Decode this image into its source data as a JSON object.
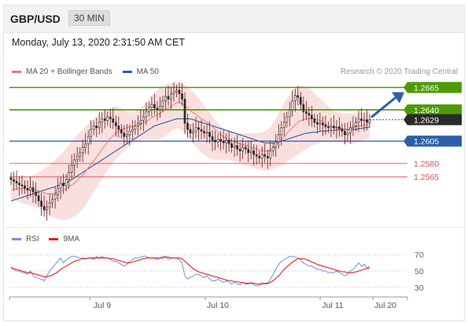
{
  "header": {
    "symbol": "GBP/USD",
    "timeframe": "30 MIN"
  },
  "timestamp": "Monday, July 13, 2020 2:31:50 AM CET",
  "copyright": "Research © 2020 Trading Central",
  "colors": {
    "resistance": "#4e9a06",
    "pivot": "#2d5ea8",
    "support": "#e05050",
    "ma50": "#2d5ea8",
    "ma20": "#e87979",
    "band": "#f9d7d7",
    "up": "#2a2a2a",
    "current": "#2a2a2a",
    "rsi": "#6e8fe0",
    "rsi_ma": "#e02020"
  },
  "chart_data": [
    {
      "type": "candlestick",
      "legend": [
        {
          "name": "MA 20 + Bollinger Bands",
          "color": "#e87979"
        },
        {
          "name": "MA 50",
          "color": "#2d5ea8"
        }
      ],
      "ylim": [
        1.2515,
        1.2675
      ],
      "levels": [
        {
          "value": 1.2665,
          "label": "1.2665",
          "kind": "resistance"
        },
        {
          "value": 1.264,
          "label": "1.2640",
          "kind": "resistance"
        },
        {
          "value": 1.2629,
          "label": "1.2629",
          "kind": "current"
        },
        {
          "value": 1.2605,
          "label": "1.2605",
          "kind": "pivot"
        },
        {
          "value": 1.258,
          "label": "1.2580",
          "kind": "support"
        },
        {
          "value": 1.2565,
          "label": "1.2565",
          "kind": "support"
        }
      ],
      "x_ticks": [
        "Jul 9",
        "Jul 10",
        "Jul 11",
        "Jul 20"
      ],
      "close": [
        1.2562,
        1.256,
        1.2558,
        1.2556,
        1.2555,
        1.2552,
        1.255,
        1.2553,
        1.2548,
        1.2544,
        1.2538,
        1.2532,
        1.2528,
        1.2531,
        1.2536,
        1.254,
        1.2545,
        1.2552,
        1.2558,
        1.2555,
        1.2562,
        1.257,
        1.2578,
        1.2584,
        1.2588,
        1.2592,
        1.2598,
        1.2602,
        1.261,
        1.2618,
        1.2622,
        1.262,
        1.2626,
        1.263,
        1.2628,
        1.2632,
        1.263,
        1.2626,
        1.2622,
        1.2618,
        1.2614,
        1.261,
        1.2612,
        1.2616,
        1.2618,
        1.2622,
        1.2625,
        1.2628,
        1.2632,
        1.2638,
        1.2643,
        1.2646,
        1.2642,
        1.264,
        1.2644,
        1.265,
        1.2655,
        1.2652,
        1.2658,
        1.266,
        1.2662,
        1.2658,
        1.2652,
        1.2625,
        1.2618,
        1.2614,
        1.2616,
        1.262,
        1.2618,
        1.2616,
        1.2614,
        1.2615,
        1.261,
        1.2606,
        1.2604,
        1.2607,
        1.2605,
        1.2603,
        1.2606,
        1.2602,
        1.2598,
        1.26,
        1.2596,
        1.2594,
        1.2598,
        1.2596,
        1.2592,
        1.2594,
        1.259,
        1.2588,
        1.2586,
        1.259,
        1.2588,
        1.2586,
        1.2594,
        1.2598,
        1.2604,
        1.2612,
        1.262,
        1.2626,
        1.2632,
        1.264,
        1.265,
        1.2656,
        1.2654,
        1.2646,
        1.2638,
        1.2636,
        1.2634,
        1.263,
        1.2626,
        1.2624,
        1.2625,
        1.2623,
        1.2621,
        1.262,
        1.2622,
        1.262,
        1.2621,
        1.2619,
        1.2616,
        1.2612,
        1.2614,
        1.262,
        1.2622,
        1.2626,
        1.263,
        1.2628,
        1.2629,
        1.2626,
        1.2629
      ],
      "ma20": [
        1.255,
        1.2551,
        1.2551,
        1.2552,
        1.2552,
        1.2552,
        1.2552,
        1.2552,
        1.2551,
        1.255,
        1.2549,
        1.2548,
        1.2547,
        1.2546,
        1.2546,
        1.2546,
        1.2547,
        1.2548,
        1.2549,
        1.255,
        1.2552,
        1.2554,
        1.2556,
        1.2558,
        1.2561,
        1.2564,
        1.2567,
        1.2571,
        1.2575,
        1.2579,
        1.2583,
        1.2587,
        1.2591,
        1.2596,
        1.26,
        1.2604,
        1.2608,
        1.2611,
        1.2614,
        1.2616,
        1.2618,
        1.2619,
        1.262,
        1.2621,
        1.2621,
        1.2622,
        1.2623,
        1.2624,
        1.2625,
        1.2627,
        1.2629,
        1.2631,
        1.2633,
        1.2634,
        1.2636,
        1.2638,
        1.264,
        1.2642,
        1.2644,
        1.2646,
        1.2648,
        1.2648,
        1.2647,
        1.2645,
        1.2642,
        1.2639,
        1.2637,
        1.2635,
        1.2632,
        1.263,
        1.2628,
        1.2626,
        1.2624,
        1.2621,
        1.2618,
        1.2615,
        1.2612,
        1.261,
        1.2608,
        1.2607,
        1.2605,
        1.2604,
        1.2603,
        1.2602,
        1.2601,
        1.26,
        1.2599,
        1.2598,
        1.2597,
        1.2596,
        1.2595,
        1.2594,
        1.2594,
        1.2594,
        1.2595,
        1.2597,
        1.26,
        1.2603,
        1.2607,
        1.261,
        1.2614,
        1.2617,
        1.262,
        1.2623,
        1.2626,
        1.2628,
        1.2629,
        1.263,
        1.263,
        1.263,
        1.263,
        1.2629,
        1.2628,
        1.2626,
        1.2624,
        1.2622,
        1.2621,
        1.262,
        1.2619,
        1.2619,
        1.2618,
        1.2618,
        1.2618,
        1.2619,
        1.262,
        1.2621,
        1.2622,
        1.2622,
        1.2623,
        1.2624,
        1.2625
      ],
      "band_upper": [
        1.2562,
        1.2563,
        1.2564,
        1.2565,
        1.2565,
        1.2565,
        1.2565,
        1.2566,
        1.2567,
        1.2568,
        1.257,
        1.2572,
        1.2574,
        1.2576,
        1.2578,
        1.2581,
        1.2584,
        1.2587,
        1.259,
        1.2593,
        1.2597,
        1.2601,
        1.2605,
        1.2608,
        1.2612,
        1.2615,
        1.2618,
        1.2621,
        1.2624,
        1.2627,
        1.263,
        1.2632,
        1.2635,
        1.2637,
        1.2639,
        1.2641,
        1.2642,
        1.2643,
        1.2644,
        1.2643,
        1.2642,
        1.264,
        1.2638,
        1.2637,
        1.2637,
        1.2638,
        1.264,
        1.2642,
        1.2645,
        1.2648,
        1.2652,
        1.2656,
        1.2659,
        1.2662,
        1.2665,
        1.2667,
        1.2668,
        1.2669,
        1.267,
        1.2671,
        1.2671,
        1.267,
        1.2669,
        1.2668,
        1.2666,
        1.2663,
        1.266,
        1.2657,
        1.2653,
        1.2649,
        1.2645,
        1.2641,
        1.2637,
        1.2633,
        1.2629,
        1.2625,
        1.2622,
        1.262,
        1.2618,
        1.2617,
        1.2616,
        1.2615,
        1.2614,
        1.2614,
        1.2614,
        1.2614,
        1.2614,
        1.2614,
        1.2614,
        1.2614,
        1.2614,
        1.2615,
        1.2616,
        1.2618,
        1.2621,
        1.2625,
        1.263,
        1.2636,
        1.2642,
        1.2648,
        1.2653,
        1.2657,
        1.2661,
        1.2664,
        1.2666,
        1.2667,
        1.2667,
        1.2666,
        1.2664,
        1.2662,
        1.2659,
        1.2656,
        1.2653,
        1.265,
        1.2647,
        1.2644,
        1.2641,
        1.2639,
        1.2638,
        1.2637,
        1.2636,
        1.2636,
        1.2636,
        1.2636,
        1.2636,
        1.2636,
        1.2637,
        1.2637,
        1.2638,
        1.2638,
        1.2639
      ],
      "band_lower": [
        1.254,
        1.2539,
        1.2538,
        1.2537,
        1.2536,
        1.2535,
        1.2534,
        1.2533,
        1.2532,
        1.2531,
        1.253,
        1.2528,
        1.2526,
        1.2524,
        1.2522,
        1.252,
        1.2519,
        1.2518,
        1.2517,
        1.2517,
        1.2517,
        1.2518,
        1.2519,
        1.2521,
        1.2523,
        1.2526,
        1.2529,
        1.2533,
        1.2538,
        1.2543,
        1.2548,
        1.2553,
        1.2558,
        1.2563,
        1.2568,
        1.2573,
        1.2577,
        1.2581,
        1.2585,
        1.2588,
        1.2591,
        1.2594,
        1.2597,
        1.26,
        1.2602,
        1.2604,
        1.2605,
        1.2606,
        1.2607,
        1.2607,
        1.2607,
        1.2607,
        1.2607,
        1.2607,
        1.2608,
        1.2609,
        1.2611,
        1.2613,
        1.2616,
        1.2618,
        1.2619,
        1.2619,
        1.2617,
        1.2614,
        1.261,
        1.2606,
        1.2602,
        1.2599,
        1.2596,
        1.2593,
        1.259,
        1.2588,
        1.2586,
        1.2585,
        1.2584,
        1.2584,
        1.2584,
        1.2584,
        1.2584,
        1.2584,
        1.2583,
        1.2582,
        1.2581,
        1.258,
        1.2579,
        1.2578,
        1.2577,
        1.2576,
        1.2575,
        1.2574,
        1.2573,
        1.2572,
        1.2572,
        1.2572,
        1.2573,
        1.2574,
        1.2575,
        1.2576,
        1.2578,
        1.258,
        1.2582,
        1.2584,
        1.2586,
        1.2588,
        1.259,
        1.2592,
        1.2594,
        1.2596,
        1.2598,
        1.26,
        1.2601,
        1.2602,
        1.2603,
        1.2604,
        1.2604,
        1.2604,
        1.2604,
        1.2604,
        1.2604,
        1.2604,
        1.2603,
        1.2602,
        1.2602,
        1.2602,
        1.2602,
        1.2603,
        1.2604,
        1.2606,
        1.2607,
        1.2608,
        1.2609
      ],
      "ma50": [
        1.2538,
        1.2539,
        1.254,
        1.2541,
        1.2542,
        1.2543,
        1.2544,
        1.2545,
        1.2546,
        1.2547,
        1.2548,
        1.2549,
        1.255,
        1.2551,
        1.2552,
        1.2553,
        1.2554,
        1.2555,
        1.2556,
        1.2557,
        1.2558,
        1.256,
        1.2562,
        1.2564,
        1.2566,
        1.2568,
        1.257,
        1.2572,
        1.2574,
        1.2576,
        1.2578,
        1.258,
        1.2582,
        1.2584,
        1.2586,
        1.2588,
        1.259,
        1.2592,
        1.2594,
        1.2596,
        1.2598,
        1.26,
        1.2602,
        1.2604,
        1.2606,
        1.2608,
        1.261,
        1.2612,
        1.2614,
        1.2616,
        1.2618,
        1.262,
        1.2622,
        1.2623,
        1.2624,
        1.2625,
        1.2626,
        1.2627,
        1.2628,
        1.2629,
        1.263,
        1.263,
        1.263,
        1.263,
        1.263,
        1.263,
        1.2629,
        1.2628,
        1.2627,
        1.2626,
        1.2625,
        1.2624,
        1.2623,
        1.2622,
        1.2621,
        1.262,
        1.2619,
        1.2618,
        1.2617,
        1.2616,
        1.2615,
        1.2614,
        1.2613,
        1.2612,
        1.2611,
        1.261,
        1.2609,
        1.2608,
        1.2607,
        1.2606,
        1.2605,
        1.2604,
        1.2603,
        1.2603,
        1.2603,
        1.2603,
        1.2603,
        1.2604,
        1.2605,
        1.2606,
        1.2607,
        1.2608,
        1.2609,
        1.261,
        1.2611,
        1.2612,
        1.2613,
        1.2614,
        1.2614,
        1.2615,
        1.2615,
        1.2615,
        1.2616,
        1.2616,
        1.2616,
        1.2617,
        1.2617,
        1.2617,
        1.2617,
        1.2618,
        1.2618,
        1.2618,
        1.2618,
        1.2618,
        1.2618,
        1.2618,
        1.2619,
        1.2619,
        1.262,
        1.262,
        1.2621
      ]
    },
    {
      "type": "line",
      "legend": [
        {
          "name": "RSI",
          "color": "#6e8fe0"
        },
        {
          "name": "9MA",
          "color": "#e02020"
        }
      ],
      "ylim": [
        24,
        76
      ],
      "y_ticks": [
        70,
        50,
        30
      ],
      "rsi": [
        55,
        52,
        50,
        50,
        48,
        48,
        46,
        50,
        44,
        42,
        41,
        40,
        38,
        44,
        50,
        54,
        58,
        62,
        66,
        60,
        64,
        66,
        68,
        68,
        67,
        66,
        66,
        65,
        66,
        66,
        64,
        68,
        66,
        68,
        66,
        66,
        64,
        62,
        62,
        60,
        58,
        56,
        58,
        62,
        64,
        66,
        66,
        67,
        68,
        68,
        66,
        66,
        66,
        64,
        66,
        68,
        68,
        64,
        66,
        66,
        66,
        64,
        60,
        44,
        40,
        42,
        44,
        46,
        46,
        44,
        42,
        44,
        40,
        38,
        38,
        40,
        38,
        36,
        38,
        36,
        34,
        36,
        34,
        33,
        36,
        34,
        34,
        36,
        33,
        32,
        32,
        36,
        34,
        34,
        40,
        46,
        52,
        58,
        62,
        64,
        66,
        68,
        68,
        67,
        66,
        64,
        60,
        58,
        56,
        56,
        54,
        52,
        52,
        50,
        50,
        48,
        48,
        48,
        50,
        48,
        46,
        44,
        46,
        50,
        52,
        56,
        60,
        56,
        58,
        54,
        56
      ],
      "rsi_ma": [
        54,
        53,
        52,
        51,
        50,
        49,
        48,
        48,
        47,
        46,
        45,
        44,
        43,
        43,
        44,
        45,
        47,
        49,
        52,
        54,
        56,
        58,
        60,
        62,
        63,
        64,
        65,
        65,
        66,
        66,
        66,
        66,
        66,
        66,
        66,
        66,
        65,
        65,
        64,
        63,
        62,
        61,
        60,
        60,
        61,
        62,
        63,
        64,
        65,
        66,
        66,
        66,
        66,
        66,
        66,
        66,
        67,
        67,
        66,
        66,
        66,
        66,
        65,
        62,
        59,
        56,
        53,
        51,
        49,
        48,
        47,
        46,
        45,
        44,
        43,
        42,
        41,
        40,
        39,
        38,
        38,
        37,
        37,
        36,
        36,
        35,
        35,
        35,
        35,
        34,
        34,
        34,
        35,
        35,
        36,
        38,
        41,
        44,
        48,
        52,
        55,
        58,
        61,
        63,
        65,
        65,
        65,
        64,
        63,
        61,
        60,
        58,
        57,
        56,
        55,
        54,
        53,
        52,
        51,
        50,
        49,
        49,
        48,
        48,
        48,
        49,
        50,
        51,
        52,
        53,
        54
      ]
    }
  ]
}
